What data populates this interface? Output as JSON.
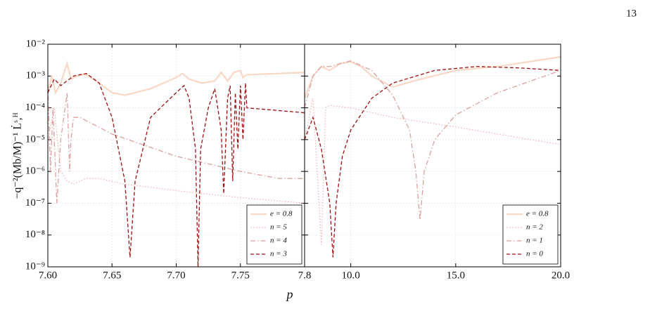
{
  "page_number": "13",
  "chart_data": [
    {
      "type": "line",
      "xlabel": "p",
      "ylabel": "−q⁻²(Mb/M)⁻¹ L̇ˢ,ᴴ",
      "log_y": true,
      "grid": true,
      "legend": "lower right",
      "xlim": [
        7.6,
        7.8
      ],
      "ylim": [
        1e-09,
        0.01
      ],
      "xticks": [
        {
          "value": 7.6,
          "label": "7.60"
        },
        {
          "value": 7.65,
          "label": "7.65"
        },
        {
          "value": 7.7,
          "label": "7.70"
        },
        {
          "value": 7.75,
          "label": "7.75"
        },
        7.8
      ],
      "yticks": [
        {
          "value": 1e-09,
          "label": "10⁻⁹"
        },
        {
          "value": 1e-08,
          "label": "10⁻⁸"
        },
        {
          "value": 1e-07,
          "label": "10⁻⁷"
        },
        {
          "value": 1e-06,
          "label": "10⁻⁶"
        },
        {
          "value": 1e-05,
          "label": "10⁻⁵"
        },
        {
          "value": 0.0001,
          "label": "10⁻⁴"
        },
        {
          "value": 0.001,
          "label": "10⁻³"
        },
        {
          "value": 0.01,
          "label": "10⁻²"
        }
      ],
      "series": [
        {
          "name": "e = 0.8",
          "color": "#f9d8c6",
          "style": "solid",
          "x": [
            7.6,
            7.603,
            7.606,
            7.61,
            7.615,
            7.618,
            7.625,
            7.63,
            7.64,
            7.65,
            7.66,
            7.68,
            7.7,
            7.705,
            7.71,
            7.72,
            7.73,
            7.735,
            7.74,
            7.745,
            7.75,
            7.752,
            7.755,
            7.78,
            7.8
          ],
          "values": [
            0.0003,
            0.001,
            0.0003,
            0.0006,
            0.0025,
            0.0008,
            0.0011,
            0.0011,
            0.0006,
            0.0003,
            0.00025,
            0.0004,
            0.0009,
            0.0012,
            0.0008,
            0.0006,
            0.0007,
            0.0013,
            0.0007,
            0.0013,
            0.0015,
            0.0009,
            0.0011,
            0.0012,
            0.0013
          ]
        },
        {
          "name": "n = 5",
          "color": "#f0b4b4",
          "style": "dotted",
          "x": [
            7.6,
            7.605,
            7.61,
            7.615,
            7.62,
            7.63,
            7.64,
            7.66,
            7.7,
            7.75,
            7.8
          ],
          "values": [
            1e-05,
            0.0001,
            1e-06,
            5e-07,
            4e-07,
            6e-07,
            6e-07,
            4e-07,
            2.5e-07,
            1.5e-07,
            1e-07
          ]
        },
        {
          "name": "n = 4",
          "color": "#dca0a0",
          "style": "dashdot",
          "x": [
            7.6,
            7.602,
            7.604,
            7.607,
            7.61,
            7.615,
            7.617,
            7.618,
            7.62,
            7.625,
            7.65,
            7.7,
            7.75,
            7.78,
            7.8
          ],
          "values": [
            0.0005,
            1e-06,
            0.0001,
            1e-07,
            1e-05,
            0.0003,
            1e-06,
            1e-05,
            5e-05,
            5e-05,
            1.5e-05,
            3e-06,
            1e-06,
            6e-07,
            6e-07
          ]
        },
        {
          "name": "n = 3",
          "color": "#a01010",
          "style": "dashed",
          "x": [
            7.6,
            7.605,
            7.61,
            7.62,
            7.63,
            7.64,
            7.65,
            7.66,
            7.664,
            7.668,
            7.68,
            7.7,
            7.706,
            7.71,
            7.715,
            7.717,
            7.719,
            7.725,
            7.73,
            7.735,
            7.737,
            7.74,
            7.742,
            7.744,
            7.746,
            7.748,
            7.75,
            7.752,
            7.754,
            7.755,
            7.8
          ],
          "values": [
            0.0003,
            0.0008,
            0.0005,
            0.001,
            0.0012,
            0.0006,
            5e-05,
            5e-07,
            2e-09,
            5e-07,
            5e-05,
            0.0003,
            0.0005,
            0.0002,
            5e-06,
            1e-09,
            5e-06,
            0.0001,
            0.0004,
            2e-05,
            2e-07,
            0.0002,
            0.0005,
            5e-07,
            0.0003,
            5e-06,
            0.0005,
            1e-05,
            0.0006,
            0.0001,
            7e-05
          ]
        }
      ]
    },
    {
      "type": "line",
      "log_y": true,
      "grid": true,
      "legend": "lower right",
      "xlim": [
        7.8,
        20
      ],
      "ylim": [
        1e-09,
        0.01
      ],
      "xticks": [
        {
          "value": 10,
          "label": "10.0"
        },
        {
          "value": 15,
          "label": "15.0"
        },
        {
          "value": 20,
          "label": "20.0"
        }
      ],
      "yticks": [
        1e-09,
        1e-08,
        1e-07,
        1e-06,
        1e-05,
        0.0001,
        0.001,
        0.01
      ],
      "series": [
        {
          "name": "e = 0.8",
          "color": "#f9d8c6",
          "style": "solid",
          "x": [
            7.8,
            8.2,
            8.6,
            9.0,
            9.5,
            10,
            10.5,
            11,
            12,
            13,
            15,
            17,
            20
          ],
          "values": [
            0.0002,
            0.001,
            0.002,
            0.0015,
            0.0025,
            0.0028,
            0.002,
            0.001,
            0.00045,
            0.0007,
            0.0015,
            0.002,
            0.004
          ]
        },
        {
          "name": "n = 2",
          "color": "#f0b4b4",
          "style": "dotted",
          "x": [
            7.8,
            8.2,
            8.6,
            8.8,
            9.0,
            10,
            12,
            15,
            17,
            20
          ],
          "values": [
            1e-05,
            0.0002,
            5e-09,
            0.0001,
            0.00012,
            0.0001,
            5e-05,
            2.5e-05,
            1.5e-05,
            7e-06
          ]
        },
        {
          "name": "n = 1",
          "color": "#dca0a0",
          "style": "dashdot",
          "x": [
            7.8,
            8.2,
            8.6,
            9.0,
            10,
            11,
            12,
            12.8,
            13.1,
            13.3,
            13.5,
            14,
            15,
            17,
            20
          ],
          "values": [
            0.0001,
            0.001,
            0.002,
            0.002,
            0.003,
            0.0015,
            0.00025,
            2e-05,
            1e-06,
            3e-08,
            1e-06,
            1e-05,
            6e-05,
            0.0003,
            0.0015
          ]
        },
        {
          "name": "n = 0",
          "color": "#a01010",
          "style": "dashed",
          "x": [
            7.8,
            8.2,
            8.6,
            9.0,
            9.15,
            9.3,
            9.6,
            10,
            11,
            12,
            14,
            16,
            18,
            20
          ],
          "values": [
            1e-05,
            5e-05,
            5e-06,
            1e-07,
            2e-09,
            1e-07,
            3e-06,
            2e-05,
            0.0002,
            0.0006,
            0.0015,
            0.002,
            0.0018,
            0.0015
          ]
        }
      ]
    }
  ]
}
